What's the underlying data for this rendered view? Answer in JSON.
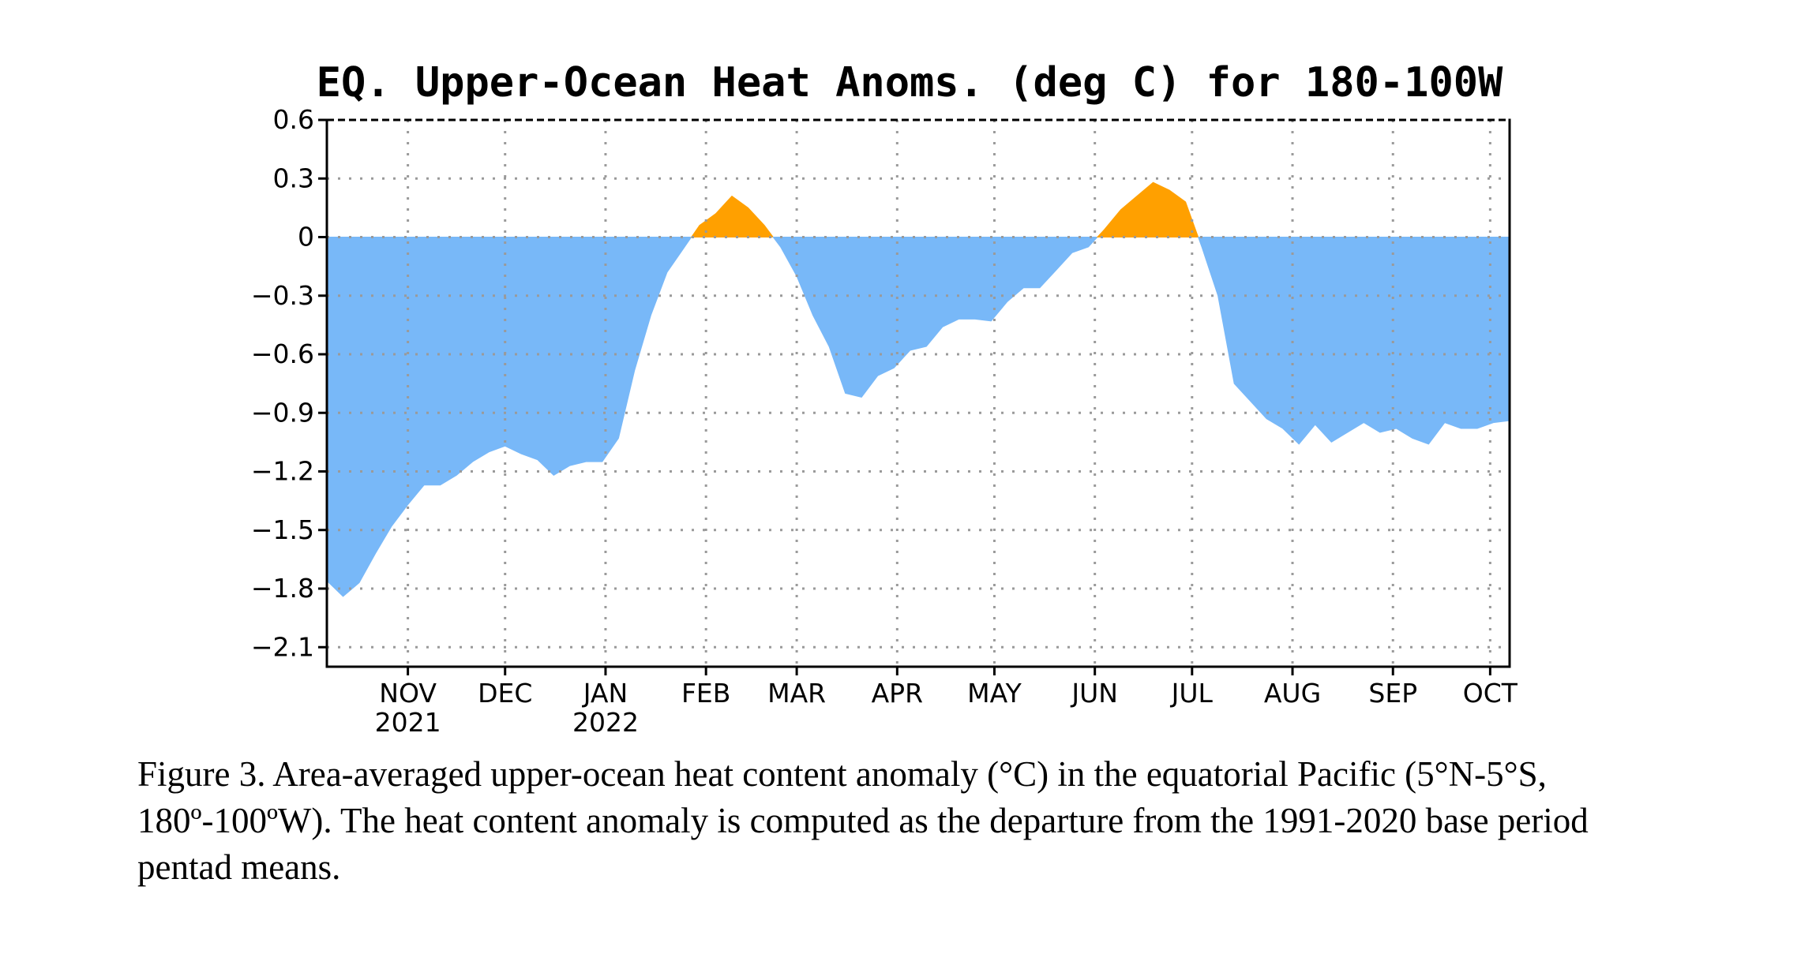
{
  "caption": "Figure 3. Area-averaged upper-ocean heat content anomaly (°C) in the equatorial Pacific (5°N-5°S, 180º-100ºW). The heat content anomaly is computed as the departure from the 1991-2020 base period pentad means.",
  "chart_data": {
    "type": "area",
    "title": "EQ. Upper-Ocean Heat Anoms. (deg C) for 180-100W",
    "xlabel": "",
    "ylabel": "",
    "ylim": [
      -2.2,
      0.6
    ],
    "xlim": [
      "2021-10-07",
      "2022-10-07"
    ],
    "yticks": [
      0.6,
      0.3,
      0,
      -0.3,
      -0.6,
      -0.9,
      -1.2,
      -1.5,
      -1.8,
      -2.1
    ],
    "ytick_labels": [
      "0.6",
      "0.3",
      "0",
      "−0.3",
      "−0.6",
      "−0.9",
      "−1.2",
      "−1.5",
      "−1.8",
      "−2.1"
    ],
    "xticks": [
      {
        "date": "2021-11-01",
        "label": "NOV",
        "year": "2021"
      },
      {
        "date": "2021-12-01",
        "label": "DEC",
        "year": ""
      },
      {
        "date": "2022-01-01",
        "label": "JAN",
        "year": "2022"
      },
      {
        "date": "2022-02-01",
        "label": "FEB",
        "year": ""
      },
      {
        "date": "2022-03-01",
        "label": "MAR",
        "year": ""
      },
      {
        "date": "2022-04-01",
        "label": "APR",
        "year": ""
      },
      {
        "date": "2022-05-01",
        "label": "MAY",
        "year": ""
      },
      {
        "date": "2022-06-01",
        "label": "JUN",
        "year": ""
      },
      {
        "date": "2022-07-01",
        "label": "JUL",
        "year": ""
      },
      {
        "date": "2022-08-01",
        "label": "AUG",
        "year": ""
      },
      {
        "date": "2022-09-01",
        "label": "SEP",
        "year": ""
      },
      {
        "date": "2022-10-01",
        "label": "OCT",
        "year": ""
      }
    ],
    "grid": true,
    "colors": {
      "positive": "#FFA000",
      "negative": "#78B8F8"
    },
    "series": [
      {
        "x": [
          "2021-10-07",
          "2021-10-12",
          "2021-10-17",
          "2021-10-22",
          "2021-10-27",
          "2021-11-01",
          "2021-11-06",
          "2021-11-11",
          "2021-11-16",
          "2021-11-21",
          "2021-11-26",
          "2021-12-01",
          "2021-12-06",
          "2021-12-11",
          "2021-12-16",
          "2021-12-21",
          "2021-12-26",
          "2021-12-31",
          "2022-01-05",
          "2022-01-10",
          "2022-01-15",
          "2022-01-20",
          "2022-01-25",
          "2022-01-30",
          "2022-02-04",
          "2022-02-09",
          "2022-02-14",
          "2022-02-19",
          "2022-02-24",
          "2022-03-01",
          "2022-03-06",
          "2022-03-11",
          "2022-03-16",
          "2022-03-21",
          "2022-03-26",
          "2022-03-31",
          "2022-04-05",
          "2022-04-10",
          "2022-04-15",
          "2022-04-20",
          "2022-04-25",
          "2022-04-30",
          "2022-05-05",
          "2022-05-10",
          "2022-05-15",
          "2022-05-20",
          "2022-05-25",
          "2022-05-30",
          "2022-06-04",
          "2022-06-09",
          "2022-06-14",
          "2022-06-19",
          "2022-06-24",
          "2022-06-29",
          "2022-07-04",
          "2022-07-09",
          "2022-07-14",
          "2022-07-19",
          "2022-07-24",
          "2022-07-29",
          "2022-08-03",
          "2022-08-08",
          "2022-08-13",
          "2022-08-18",
          "2022-08-23",
          "2022-08-28",
          "2022-09-02",
          "2022-09-07",
          "2022-09-12",
          "2022-09-17",
          "2022-09-22",
          "2022-09-27",
          "2022-10-02",
          "2022-10-07"
        ],
        "y": [
          -1.76,
          -1.84,
          -1.77,
          -1.62,
          -1.48,
          -1.37,
          -1.27,
          -1.27,
          -1.22,
          -1.15,
          -1.1,
          -1.07,
          -1.11,
          -1.14,
          -1.22,
          -1.17,
          -1.15,
          -1.15,
          -1.03,
          -0.68,
          -0.4,
          -0.18,
          -0.06,
          0.06,
          0.12,
          0.21,
          0.15,
          0.06,
          -0.05,
          -0.2,
          -0.4,
          -0.56,
          -0.8,
          -0.82,
          -0.71,
          -0.67,
          -0.58,
          -0.56,
          -0.46,
          -0.42,
          -0.42,
          -0.43,
          -0.33,
          -0.26,
          -0.26,
          -0.17,
          -0.08,
          -0.05,
          0.04,
          0.14,
          0.21,
          0.28,
          0.24,
          0.18,
          -0.05,
          -0.3,
          -0.75,
          -0.84,
          -0.93,
          -0.98,
          -1.06,
          -0.96,
          -1.05,
          -1.0,
          -0.95,
          -1.0,
          -0.98,
          -1.03,
          -1.06,
          -0.95,
          -0.98,
          -0.98,
          -0.95,
          -0.94
        ]
      }
    ]
  }
}
